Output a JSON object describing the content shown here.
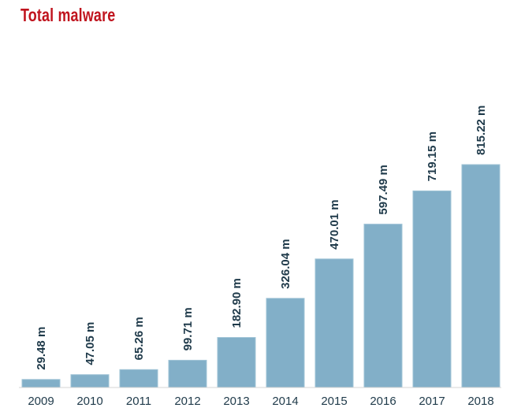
{
  "colors": {
    "title": "#c0141e",
    "bar": "#82afc8",
    "bar_edge": "#9fc3d6",
    "text": "#1f3a4a",
    "baseline": "#d5d5d5"
  },
  "chart_data": {
    "type": "bar",
    "title": "Total malware",
    "xlabel": "",
    "ylabel": "",
    "unit": "m",
    "categories": [
      "2009",
      "2010",
      "2011",
      "2012",
      "2013",
      "2014",
      "2015",
      "2016",
      "2017",
      "2018"
    ],
    "values": [
      29.48,
      47.05,
      65.26,
      99.71,
      182.9,
      326.04,
      470.01,
      597.49,
      719.15,
      815.22
    ],
    "value_labels": [
      "29.48 m",
      "47.05 m",
      "65.26 m",
      "99.71 m",
      "182.90 m",
      "326.04 m",
      "470.01 m",
      "597.49 m",
      "719.15 m",
      "815.22 m"
    ],
    "ylim": [
      0,
      815.22
    ],
    "grid": false,
    "legend": "none"
  }
}
